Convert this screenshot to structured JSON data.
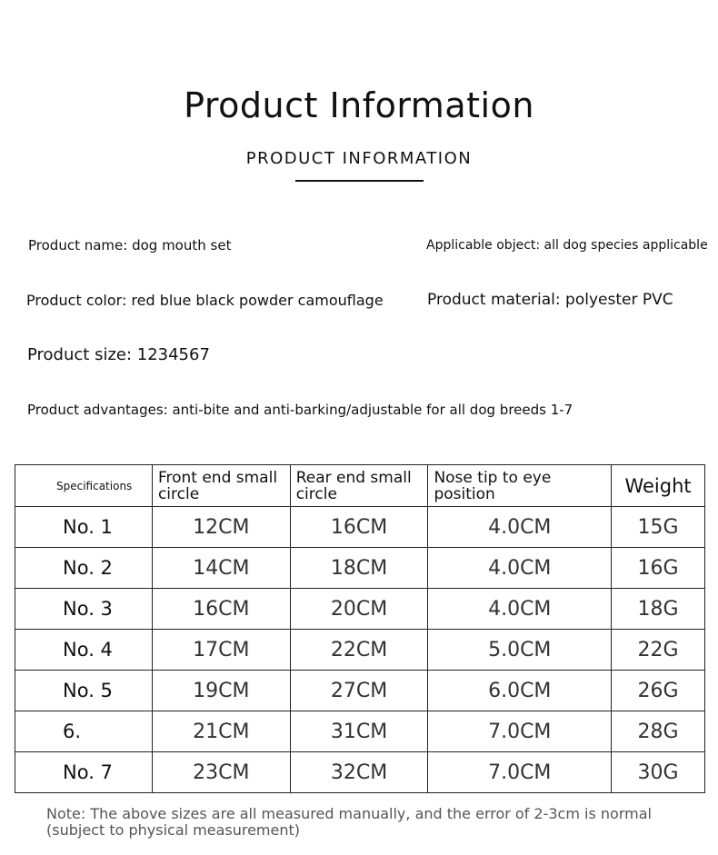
{
  "header": {
    "title": "Product Information",
    "subtitle": "PRODUCT INFORMATION"
  },
  "info": {
    "name": "Product name: dog mouth set",
    "applicable": "Applicable object: all dog species applicable",
    "color": "Product color: red blue black powder camouflage",
    "material": "Product material: polyester PVC",
    "size": "Product size: 1234567",
    "advantages": "Product advantages: anti-bite and anti-barking/adjustable for all dog breeds 1-7"
  },
  "table": {
    "headers": [
      "Specifications",
      "Front end small circle",
      "Rear end small circle",
      "Nose tip to eye position",
      "Weight"
    ],
    "rows": [
      [
        "No. 1",
        "12CM",
        "16CM",
        "4.0CM",
        "15G"
      ],
      [
        "No. 2",
        "14CM",
        "18CM",
        "4.0CM",
        "16G"
      ],
      [
        "No. 3",
        "16CM",
        "20CM",
        "4.0CM",
        "18G"
      ],
      [
        "No. 4",
        "17CM",
        "22CM",
        "5.0CM",
        "22G"
      ],
      [
        "No. 5",
        "19CM",
        "27CM",
        "6.0CM",
        "26G"
      ],
      [
        "6.",
        "21CM",
        "31CM",
        "7.0CM",
        "28G"
      ],
      [
        "No. 7",
        "23CM",
        "32CM",
        "7.0CM",
        "30G"
      ]
    ]
  },
  "note": "Note: The above sizes are all measured manually, and the error of 2-3cm is normal (subject to physical measurement)"
}
